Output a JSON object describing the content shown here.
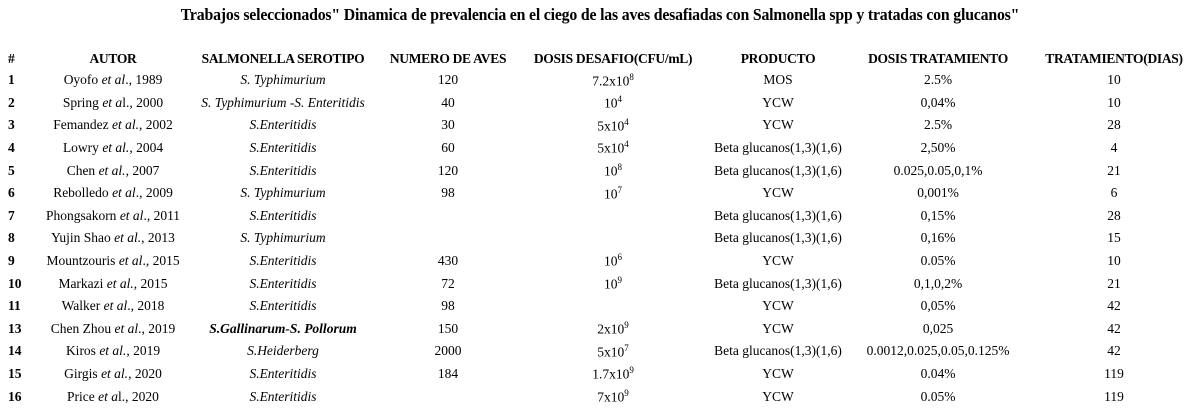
{
  "title": "Trabajos seleccionados\" Dinamica de prevalencia  en el ciego de las aves desafiadas con Salmonella spp y tratadas con glucanos\"",
  "headers": {
    "num": "#",
    "autor": "AUTOR",
    "serotipo": "SALMONELLA SEROTIPO",
    "aves": "NUMERO DE AVES",
    "dosis_desafio": "DOSIS DESAFIO(CFU/mL)",
    "producto": "PRODUCTO",
    "dosis_tratamiento": "DOSIS TRATAMIENTO",
    "tratamiento": "TRATAMIENTO(DIAS)"
  },
  "rows": [
    {
      "num": "1",
      "autor_pre": "Oyofo ",
      "autor_it": "et al",
      "autor_post": "., 1989",
      "serotipo": "S. Typhimurium",
      "aves": "120",
      "desafio_base": "7.2x10",
      "desafio_exp": "8",
      "producto": "MOS",
      "dosis": "2.5%",
      "dias": "10"
    },
    {
      "num": "2",
      "autor_pre": "Spring ",
      "autor_it": "et a",
      "autor_post": "l., 2000",
      "serotipo": "S. Typhimurium -S. Enteritidis",
      "aves": "40",
      "desafio_base": "10",
      "desafio_exp": "4",
      "producto": "YCW",
      "dosis": "0,04%",
      "dias": "10"
    },
    {
      "num": "3",
      "autor_pre": "Femandez ",
      "autor_it": "et al.",
      "autor_post": ", 2002",
      "serotipo": "S.Enteritidis",
      "aves": "30",
      "desafio_base": "5x10",
      "desafio_exp": "4",
      "producto": "YCW",
      "dosis": "2.5%",
      "dias": "28"
    },
    {
      "num": "4",
      "autor_pre": "Lowry ",
      "autor_it": "et al.",
      "autor_post": ", 2004",
      "serotipo": "S.Enteritidis",
      "aves": "60",
      "desafio_base": "5x10",
      "desafio_exp": "4",
      "producto": "Beta glucanos(1,3)(1,6)",
      "dosis": "2,50%",
      "dias": "4"
    },
    {
      "num": "5",
      "autor_pre": "Chen ",
      "autor_it": "et al.",
      "autor_post": ", 2007",
      "serotipo": "S.Enteritidis",
      "aves": "120",
      "desafio_base": "10",
      "desafio_exp": "8",
      "producto": "Beta glucanos(1,3)(1,6)",
      "dosis": "0.025,0.05,0,1%",
      "dias": "21"
    },
    {
      "num": "6",
      "autor_pre": "Rebolledo ",
      "autor_it": "et al",
      "autor_post": "., 2009",
      "serotipo": "S. Typhimurium",
      "aves": "98",
      "desafio_base": "10",
      "desafio_exp": "7",
      "producto": "YCW",
      "dosis": "0,001%",
      "dias": "6"
    },
    {
      "num": "7",
      "autor_pre": "Phongsakorn ",
      "autor_it": "et al",
      "autor_post": "., 2011",
      "serotipo": "S.Enteritidis",
      "aves": "",
      "desafio_base": "",
      "desafio_exp": "",
      "producto": "Beta glucanos(1,3)(1,6)",
      "dosis": "0,15%",
      "dias": "28"
    },
    {
      "num": "8",
      "autor_pre": "Yujin Shao ",
      "autor_it": "et al.",
      "autor_post": ", 2013",
      "serotipo": "S. Typhimurium",
      "aves": "",
      "desafio_base": "",
      "desafio_exp": "",
      "producto": "Beta glucanos(1,3)(1,6)",
      "dosis": "0,16%",
      "dias": "15"
    },
    {
      "num": "9",
      "autor_pre": "Mountzouris ",
      "autor_it": "et al",
      "autor_post": "., 2015",
      "serotipo": "S.Enteritidis",
      "aves": "430",
      "desafio_base": "10",
      "desafio_exp": "6",
      "producto": "YCW",
      "dosis": "0.05%",
      "dias": "10"
    },
    {
      "num": "10",
      "autor_pre": "Markazi ",
      "autor_it": "et al.",
      "autor_post": ", 2015",
      "serotipo": "S.Enteritidis",
      "aves": "72",
      "desafio_base": "10",
      "desafio_exp": "9",
      "producto": "Beta glucanos(1,3)(1,6)",
      "dosis": "0,1,0,2%",
      "dias": "21"
    },
    {
      "num": "11",
      "autor_pre": "Walker ",
      "autor_it": "et al",
      "autor_post": "., 2018",
      "serotipo": "S.Enteritidis",
      "aves": "98",
      "desafio_base": "",
      "desafio_exp": "",
      "producto": "YCW",
      "dosis": "0,05%",
      "dias": "42"
    },
    {
      "num": "13",
      "autor_pre": "Chen Zhou ",
      "autor_it": "et al",
      "autor_post": "., 2019",
      "serotipo": "S.Gallinarum-S. Pollorum",
      "serotipo_bold": true,
      "aves": "150",
      "desafio_base": "2x10",
      "desafio_exp": "9",
      "producto": "YCW",
      "dosis": "0,025",
      "dias": "42"
    },
    {
      "num": "14",
      "autor_pre": "Kiros ",
      "autor_it": "et al.",
      "autor_post": ", 2019",
      "serotipo": "S.Heiderberg",
      "aves": "2000",
      "desafio_base": "5x10",
      "desafio_exp": "7",
      "producto": "Beta glucanos(1,3)(1,6)",
      "dosis": "0.0012,0.025,0.05,0.125%",
      "dias": "42"
    },
    {
      "num": "15",
      "autor_pre": "Girgis ",
      "autor_it": "et al.",
      "autor_post": ", 2020",
      "serotipo": "S.Enteritidis",
      "aves": "184",
      "desafio_base": "1.7x10",
      "desafio_exp": "9",
      "producto": "YCW",
      "dosis": "0.04%",
      "dias": "119"
    },
    {
      "num": "16",
      "autor_pre": "Price ",
      "autor_it": "et a",
      "autor_post": "l., 2020",
      "serotipo": "S.Enteritidis",
      "aves": "",
      "desafio_base": "7x10",
      "desafio_exp": "9",
      "producto": "YCW",
      "dosis": "0.05%",
      "dias": "119"
    }
  ]
}
